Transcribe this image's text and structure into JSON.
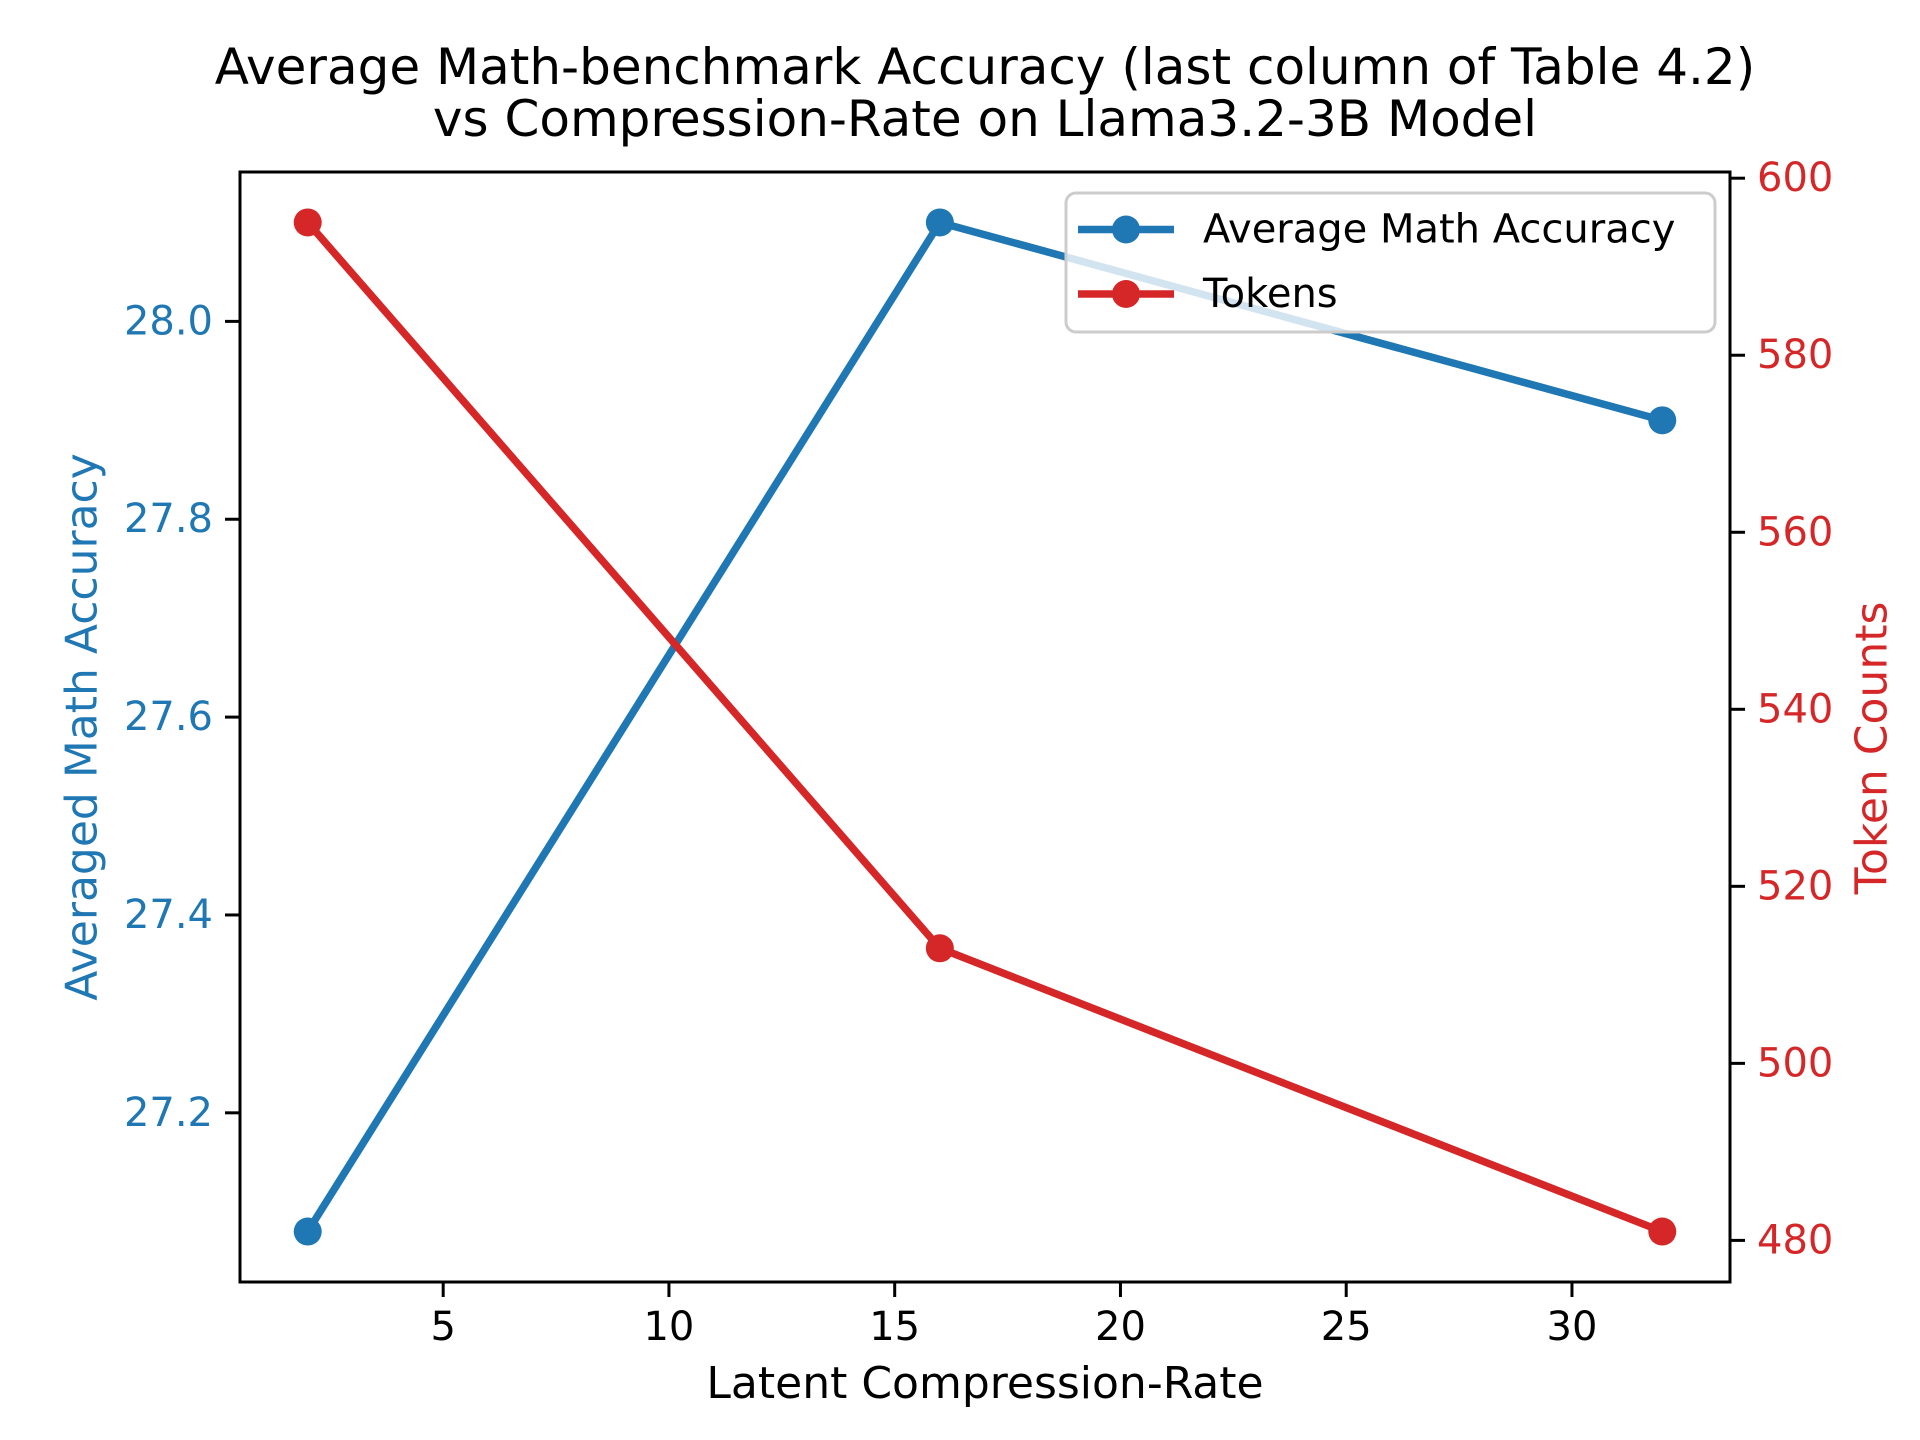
{
  "figure": {
    "title_line1": "Average Math-benchmark Accuracy (last column of Table 4.2)",
    "title_line2": "vs Compression-Rate on Llama3.2-3B Model"
  },
  "chart_data": {
    "type": "line",
    "x": [
      2,
      16,
      32
    ],
    "xlabel": "Latent Compression-Rate",
    "xlim": [
      0.5,
      33.5
    ],
    "x_ticks": [
      5,
      10,
      15,
      20,
      25,
      30
    ],
    "x_tick_labels": [
      "5",
      "10",
      "15",
      "20",
      "25",
      "30"
    ],
    "series": [
      {
        "name": "Average Math Accuracy",
        "axis": "left",
        "color": "#1f77b4",
        "values": [
          27.08,
          28.1,
          27.9
        ]
      },
      {
        "name": "Tokens",
        "axis": "right",
        "color": "#d62728",
        "values": [
          595,
          513,
          481
        ]
      }
    ],
    "left_axis": {
      "label": "Averaged Math Accuracy",
      "color": "#1f77b4",
      "lim": [
        27.029,
        28.151
      ],
      "ticks": [
        27.2,
        27.4,
        27.6,
        27.8,
        28.0
      ],
      "tick_labels": [
        "27.2",
        "27.4",
        "27.6",
        "27.8",
        "28.0"
      ]
    },
    "right_axis": {
      "label": "Token Counts",
      "color": "#d62728",
      "lim": [
        475.3,
        600.7
      ],
      "ticks": [
        480,
        500,
        520,
        540,
        560,
        580,
        600
      ],
      "tick_labels": [
        "480",
        "500",
        "520",
        "540",
        "560",
        "580",
        "600"
      ]
    },
    "legend": {
      "location": "upper right",
      "entries": [
        "Average Math Accuracy",
        "Tokens"
      ]
    },
    "grid": false,
    "spine_color": "#000000",
    "legend_border_color": "#cccccc"
  }
}
